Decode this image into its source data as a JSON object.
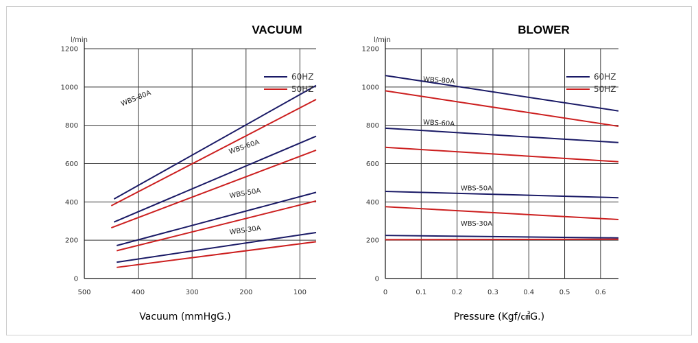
{
  "chart_data": [
    {
      "type": "line",
      "title": "VACUUM",
      "xlabel": "Vacuum (mmHgG.)",
      "ylabel": "l/min",
      "xlim": [
        500,
        70
      ],
      "ylim": [
        0,
        1200
      ],
      "xticks": [
        500,
        400,
        300,
        200,
        100
      ],
      "yticks": [
        0,
        200,
        400,
        600,
        800,
        1000,
        1200
      ],
      "grid": true,
      "legend": {
        "position": "top-right",
        "entries": [
          {
            "label": "60HZ",
            "color": "#1a1a66"
          },
          {
            "label": "50HZ",
            "color": "#cc1f1f"
          }
        ]
      },
      "models": [
        {
          "label": "WBS-80A",
          "label_at": [
            430,
            900
          ],
          "label_rotate": -22,
          "label_model": 0
        },
        {
          "label": "WBS-60A",
          "label_at": [
            230,
            650
          ],
          "label_rotate": -19,
          "label_model": 1
        },
        {
          "label": "WBS-50A",
          "label_at": [
            230,
            420
          ],
          "label_rotate": -10,
          "label_model": 2
        },
        {
          "label": "WBS-30A",
          "label_at": [
            230,
            230
          ],
          "label_rotate": -8,
          "label_model": 3
        }
      ],
      "series": [
        {
          "name": "60HZ",
          "model": "WBS-80A",
          "color": "#1a1a66",
          "x": [
            445,
            70
          ],
          "y": [
            415,
            1008
          ]
        },
        {
          "name": "50HZ",
          "model": "WBS-80A",
          "color": "#cc1f1f",
          "x": [
            450,
            70
          ],
          "y": [
            380,
            935
          ]
        },
        {
          "name": "60HZ",
          "model": "WBS-60A",
          "color": "#1a1a66",
          "x": [
            445,
            70
          ],
          "y": [
            295,
            743
          ]
        },
        {
          "name": "50HZ",
          "model": "WBS-60A",
          "color": "#cc1f1f",
          "x": [
            450,
            70
          ],
          "y": [
            265,
            670
          ]
        },
        {
          "name": "60HZ",
          "model": "WBS-50A",
          "color": "#1a1a66",
          "x": [
            440,
            70
          ],
          "y": [
            172,
            450
          ]
        },
        {
          "name": "50HZ",
          "model": "WBS-50A",
          "color": "#cc1f1f",
          "x": [
            440,
            70
          ],
          "y": [
            145,
            405
          ]
        },
        {
          "name": "60HZ",
          "model": "WBS-30A",
          "color": "#1a1a66",
          "x": [
            440,
            70
          ],
          "y": [
            85,
            240
          ]
        },
        {
          "name": "50HZ",
          "model": "WBS-30A",
          "color": "#cc1f1f",
          "x": [
            440,
            70
          ],
          "y": [
            58,
            192
          ]
        }
      ]
    },
    {
      "type": "line",
      "title": "BLOWER",
      "xlabel": "Pressure (Kgf/㎠G.)",
      "ylabel": "l/min",
      "xlim": [
        0,
        0.65
      ],
      "ylim": [
        0,
        1200
      ],
      "xticks": [
        "0",
        "0.1",
        "0.2",
        "0.3",
        "0.4",
        "0.5",
        "0.6"
      ],
      "yticks": [
        0,
        200,
        400,
        600,
        800,
        1000,
        1200
      ],
      "grid": true,
      "legend": {
        "position": "top-right",
        "entries": [
          {
            "label": "60HZ",
            "color": "#1a1a66"
          },
          {
            "label": "50HZ",
            "color": "#cc1f1f"
          }
        ]
      },
      "models": [
        {
          "label": "WBS-80A",
          "label_at": [
            0.105,
            1030
          ],
          "label_rotate": 4
        },
        {
          "label": "WBS-60A",
          "label_at": [
            0.105,
            805
          ],
          "label_rotate": 3
        },
        {
          "label": "WBS-50A",
          "label_at": [
            0.21,
            460
          ],
          "label_rotate": 0
        },
        {
          "label": "WBS-30A",
          "label_at": [
            0.21,
            275
          ],
          "label_rotate": 0
        }
      ],
      "series": [
        {
          "name": "60HZ",
          "model": "WBS-80A",
          "color": "#1a1a66",
          "x": [
            0,
            0.65
          ],
          "y": [
            1060,
            875
          ]
        },
        {
          "name": "50HZ",
          "model": "WBS-80A",
          "color": "#cc1f1f",
          "x": [
            0,
            0.65
          ],
          "y": [
            980,
            795
          ]
        },
        {
          "name": "60HZ",
          "model": "WBS-60A",
          "color": "#1a1a66",
          "x": [
            0,
            0.65
          ],
          "y": [
            785,
            710
          ]
        },
        {
          "name": "50HZ",
          "model": "WBS-60A",
          "color": "#cc1f1f",
          "x": [
            0,
            0.65
          ],
          "y": [
            685,
            610
          ]
        },
        {
          "name": "60HZ",
          "model": "WBS-50A",
          "color": "#1a1a66",
          "x": [
            0,
            0.65
          ],
          "y": [
            455,
            422
          ]
        },
        {
          "name": "50HZ",
          "model": "WBS-50A",
          "color": "#cc1f1f",
          "x": [
            0,
            0.65
          ],
          "y": [
            375,
            308
          ]
        },
        {
          "name": "60HZ",
          "model": "WBS-30A",
          "color": "#1a1a66",
          "x": [
            0,
            0.65
          ],
          "y": [
            225,
            212
          ]
        },
        {
          "name": "50HZ",
          "model": "WBS-30A",
          "color": "#cc1f1f",
          "x": [
            0,
            0.65
          ],
          "y": [
            203,
            205
          ]
        }
      ]
    }
  ]
}
